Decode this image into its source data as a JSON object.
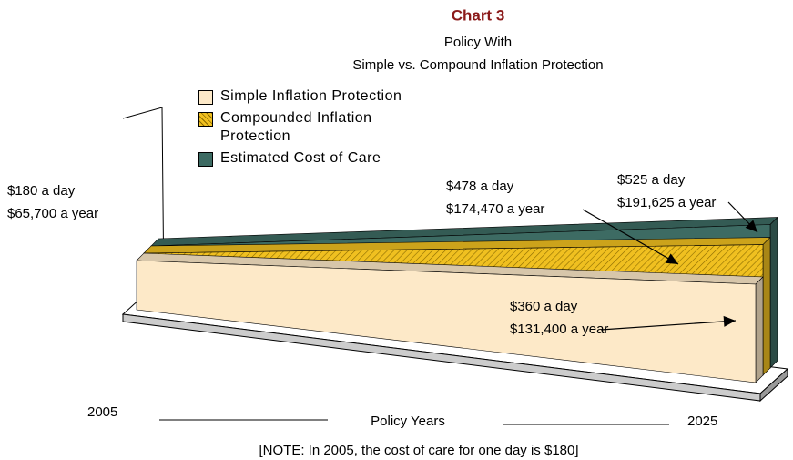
{
  "chart_data": {
    "type": "area3d",
    "title": "Chart 3",
    "subtitle": [
      "Policy With",
      "Simple vs. Compound Inflation Protection"
    ],
    "x_label": "Policy Years",
    "categories": [
      "2005",
      "2025"
    ],
    "start_labels": [
      "$180 a day",
      "$65,700 a year"
    ],
    "note": "[NOTE: In 2005, the cost of care for one day is $180]",
    "series": [
      {
        "name": "Simple Inflation Protection",
        "color": "#fde9c8",
        "values": [
          180,
          360
        ],
        "value_labels": [
          null,
          "$360 a day"
        ],
        "year_labels": [
          null,
          "$131,400 a year"
        ]
      },
      {
        "name": "Compounded Inflation Protection",
        "color": "#f0c020",
        "values": [
          180,
          478
        ],
        "value_labels": [
          null,
          "$478 a day"
        ],
        "year_labels": [
          null,
          "$174,470 a year"
        ]
      },
      {
        "name": "Estimated Cost of Care",
        "color": "#3d6b63",
        "values": [
          180,
          525
        ],
        "value_labels": [
          null,
          "$525 a day"
        ],
        "year_labels": [
          null,
          "$191,625 a year"
        ]
      }
    ]
  }
}
